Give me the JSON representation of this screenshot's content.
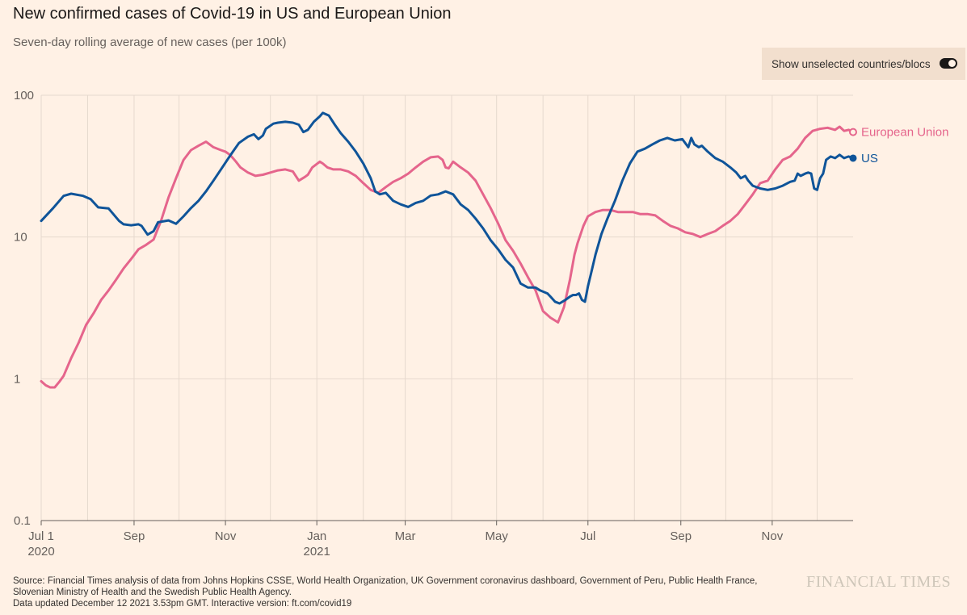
{
  "title": "New confirmed cases of Covid-19 in US and European Union",
  "subtitle": "Seven-day rolling average of new cases (per 100k)",
  "toggle": {
    "label": "Show unselected countries/blocs",
    "state": "on"
  },
  "footer": {
    "source_line1": "Source: Financial Times analysis of data from Johns Hopkins CSSE, World Health Organization, UK Government coronavirus dashboard, Government of Peru, Public Health France,",
    "source_line2": "Slovenian Ministry of Health and the Swedish Public Health Agency.",
    "updated": "Data updated December 12 2021 3.53pm GMT. Interactive version: ft.com/covid19"
  },
  "brand": "FINANCIAL TIMES",
  "colors": {
    "background": "#FFF1E5",
    "us": "#0F5499",
    "eu": "#E5658C",
    "grid": "#E6D9CE"
  },
  "chart_data": {
    "type": "line",
    "title": "New confirmed cases of Covid-19 in US and European Union",
    "subtitle": "Seven-day rolling average of new cases (per 100k)",
    "xlabel": "",
    "ylabel": "",
    "yscale": "log",
    "ylim": [
      0.1,
      100
    ],
    "yticks": [
      100,
      10,
      1,
      0.1
    ],
    "ytick_labels": [
      "100",
      "10",
      "1",
      "0.1"
    ],
    "xlim": [
      0,
      542
    ],
    "x_unit": "days since 2020-07-01",
    "xticks": [
      {
        "x": 0,
        "label": "Jul 1",
        "sub": "2020"
      },
      {
        "x": 62,
        "label": "Sep",
        "sub": ""
      },
      {
        "x": 123,
        "label": "Nov",
        "sub": ""
      },
      {
        "x": 184,
        "label": "Jan",
        "sub": "2021"
      },
      {
        "x": 243,
        "label": "Mar",
        "sub": ""
      },
      {
        "x": 304,
        "label": "May",
        "sub": ""
      },
      {
        "x": 365,
        "label": "Jul",
        "sub": ""
      },
      {
        "x": 427,
        "label": "Sep",
        "sub": ""
      },
      {
        "x": 488,
        "label": "Nov",
        "sub": ""
      }
    ],
    "gridlines_x": [
      0,
      31,
      62,
      92,
      123,
      153,
      184,
      215,
      243,
      274,
      304,
      335,
      365,
      396,
      427,
      457,
      488,
      518
    ],
    "legend": "end-of-line labels",
    "series": [
      {
        "name": "US",
        "color": "#0F5499",
        "x": [
          0,
          8,
          15,
          20,
          28,
          33,
          38,
          45,
          52,
          55,
          60,
          65,
          67,
          71,
          75,
          78,
          85,
          90,
          95,
          100,
          105,
          110,
          115,
          120,
          125,
          128,
          132,
          138,
          142,
          145,
          148,
          150,
          155,
          158,
          163,
          168,
          172,
          175,
          178,
          182,
          186,
          188,
          192,
          196,
          200,
          205,
          210,
          215,
          220,
          223,
          226,
          230,
          235,
          240,
          245,
          250,
          255,
          260,
          265,
          270,
          275,
          280,
          285,
          290,
          295,
          300,
          305,
          310,
          315,
          320,
          325,
          330,
          333,
          338,
          340,
          343,
          346,
          350,
          353,
          355,
          357,
          359,
          361,
          363,
          365,
          367,
          370,
          374,
          378,
          383,
          388,
          393,
          398,
          403,
          408,
          413,
          418,
          423,
          428,
          432,
          434,
          436,
          439,
          441,
          445,
          450,
          455,
          460,
          464,
          467,
          470,
          472,
          475,
          480,
          485,
          490,
          495,
          500,
          503,
          505,
          507,
          510,
          512,
          514,
          516,
          518,
          520,
          522,
          524,
          527,
          530,
          533,
          536,
          539,
          542
        ],
        "values": [
          13,
          16,
          19.5,
          20.2,
          19.5,
          18.5,
          16.2,
          15.9,
          13.0,
          12.3,
          12.1,
          12.3,
          12.0,
          10.4,
          11.0,
          12.7,
          13.1,
          12.4,
          14.0,
          16.0,
          18.0,
          21.0,
          25.0,
          30.0,
          36.0,
          40.0,
          46.0,
          51.0,
          53.0,
          49.0,
          52.0,
          58.0,
          63.0,
          64.0,
          65.0,
          64.0,
          62.0,
          55.0,
          57.0,
          65.0,
          71.0,
          75.0,
          72.0,
          62.0,
          54.0,
          47.0,
          40.0,
          33.0,
          26.0,
          21.0,
          20.0,
          20.5,
          18.0,
          17.0,
          16.3,
          17.4,
          18.0,
          19.6,
          20.0,
          21.0,
          20.0,
          17.0,
          15.5,
          13.5,
          11.5,
          9.5,
          8.2,
          6.9,
          6.1,
          4.7,
          4.4,
          4.4,
          4.2,
          4.0,
          3.8,
          3.5,
          3.4,
          3.6,
          3.8,
          3.9,
          3.9,
          4.0,
          3.6,
          3.5,
          4.5,
          5.5,
          7.5,
          10.5,
          13.5,
          18.0,
          25.0,
          33.0,
          40.0,
          42.0,
          45.0,
          48.0,
          50.0,
          48.0,
          49.0,
          43.0,
          50.0,
          45.0,
          43.0,
          44.0,
          40.0,
          36.0,
          34.0,
          31.0,
          28.5,
          26.0,
          27.0,
          25.0,
          23.0,
          22.0,
          21.5,
          22.0,
          23.0,
          24.5,
          25.0,
          28.0,
          27.0,
          28.0,
          28.5,
          28.0,
          22.0,
          21.5,
          26.0,
          28.0,
          35.0,
          37.0,
          36.0,
          38.0,
          36.0,
          37.0,
          36.0
        ]
      },
      {
        "name": "European Union",
        "color": "#E5658C",
        "x": [
          0,
          3,
          6,
          9,
          12,
          15,
          20,
          25,
          30,
          35,
          40,
          45,
          50,
          55,
          60,
          65,
          70,
          75,
          80,
          85,
          90,
          95,
          100,
          105,
          110,
          115,
          120,
          123,
          126,
          128,
          130,
          133,
          138,
          143,
          148,
          153,
          158,
          163,
          168,
          172,
          176,
          178,
          181,
          186,
          188,
          191,
          195,
          200,
          205,
          210,
          215,
          220,
          225,
          230,
          235,
          240,
          245,
          250,
          255,
          260,
          265,
          268,
          270,
          272,
          275,
          280,
          285,
          290,
          295,
          300,
          305,
          310,
          315,
          320,
          325,
          330,
          335,
          340,
          345,
          349,
          353,
          356,
          358,
          362,
          365,
          370,
          375,
          380,
          385,
          390,
          395,
          400,
          405,
          410,
          415,
          420,
          425,
          430,
          435,
          440,
          445,
          450,
          455,
          460,
          465,
          470,
          475,
          480,
          485,
          490,
          495,
          500,
          505,
          510,
          515,
          520,
          525,
          530,
          533,
          536,
          539,
          542
        ],
        "values": [
          0.96,
          0.9,
          0.87,
          0.87,
          0.95,
          1.05,
          1.4,
          1.8,
          2.4,
          2.9,
          3.6,
          4.2,
          5.0,
          6.0,
          7.0,
          8.2,
          8.8,
          9.6,
          13.0,
          19.0,
          26.0,
          35.0,
          41.0,
          44.0,
          47.0,
          43.0,
          41.0,
          40.0,
          38.0,
          36.0,
          34.0,
          31.0,
          28.5,
          27.0,
          27.5,
          28.5,
          29.5,
          30.0,
          29.0,
          25.0,
          26.5,
          27.5,
          31.0,
          34.0,
          33.0,
          31.0,
          30.0,
          30.0,
          29.0,
          27.0,
          24.0,
          21.5,
          20.5,
          22.5,
          24.5,
          26.0,
          28.0,
          31.0,
          34.0,
          36.5,
          37.0,
          35.0,
          31.0,
          30.5,
          34.0,
          31.0,
          28.5,
          25.0,
          20.0,
          16.0,
          12.5,
          9.5,
          8.0,
          6.5,
          5.2,
          4.2,
          3.0,
          2.7,
          2.5,
          3.2,
          5.0,
          7.5,
          9.0,
          12.0,
          14.0,
          15.0,
          15.5,
          15.5,
          15.0,
          15.0,
          15.0,
          14.5,
          14.5,
          14.2,
          13.0,
          12.0,
          11.5,
          10.8,
          10.5,
          10.0,
          10.5,
          11.0,
          12.0,
          13.0,
          14.5,
          17.0,
          20.0,
          24.0,
          25.0,
          30.0,
          35.0,
          37.0,
          42.0,
          50.0,
          56.0,
          58.0,
          59.0,
          57.0,
          60.0,
          56.0,
          57.0,
          55.0
        ]
      }
    ],
    "end_labels": [
      "European Union",
      "US"
    ]
  }
}
